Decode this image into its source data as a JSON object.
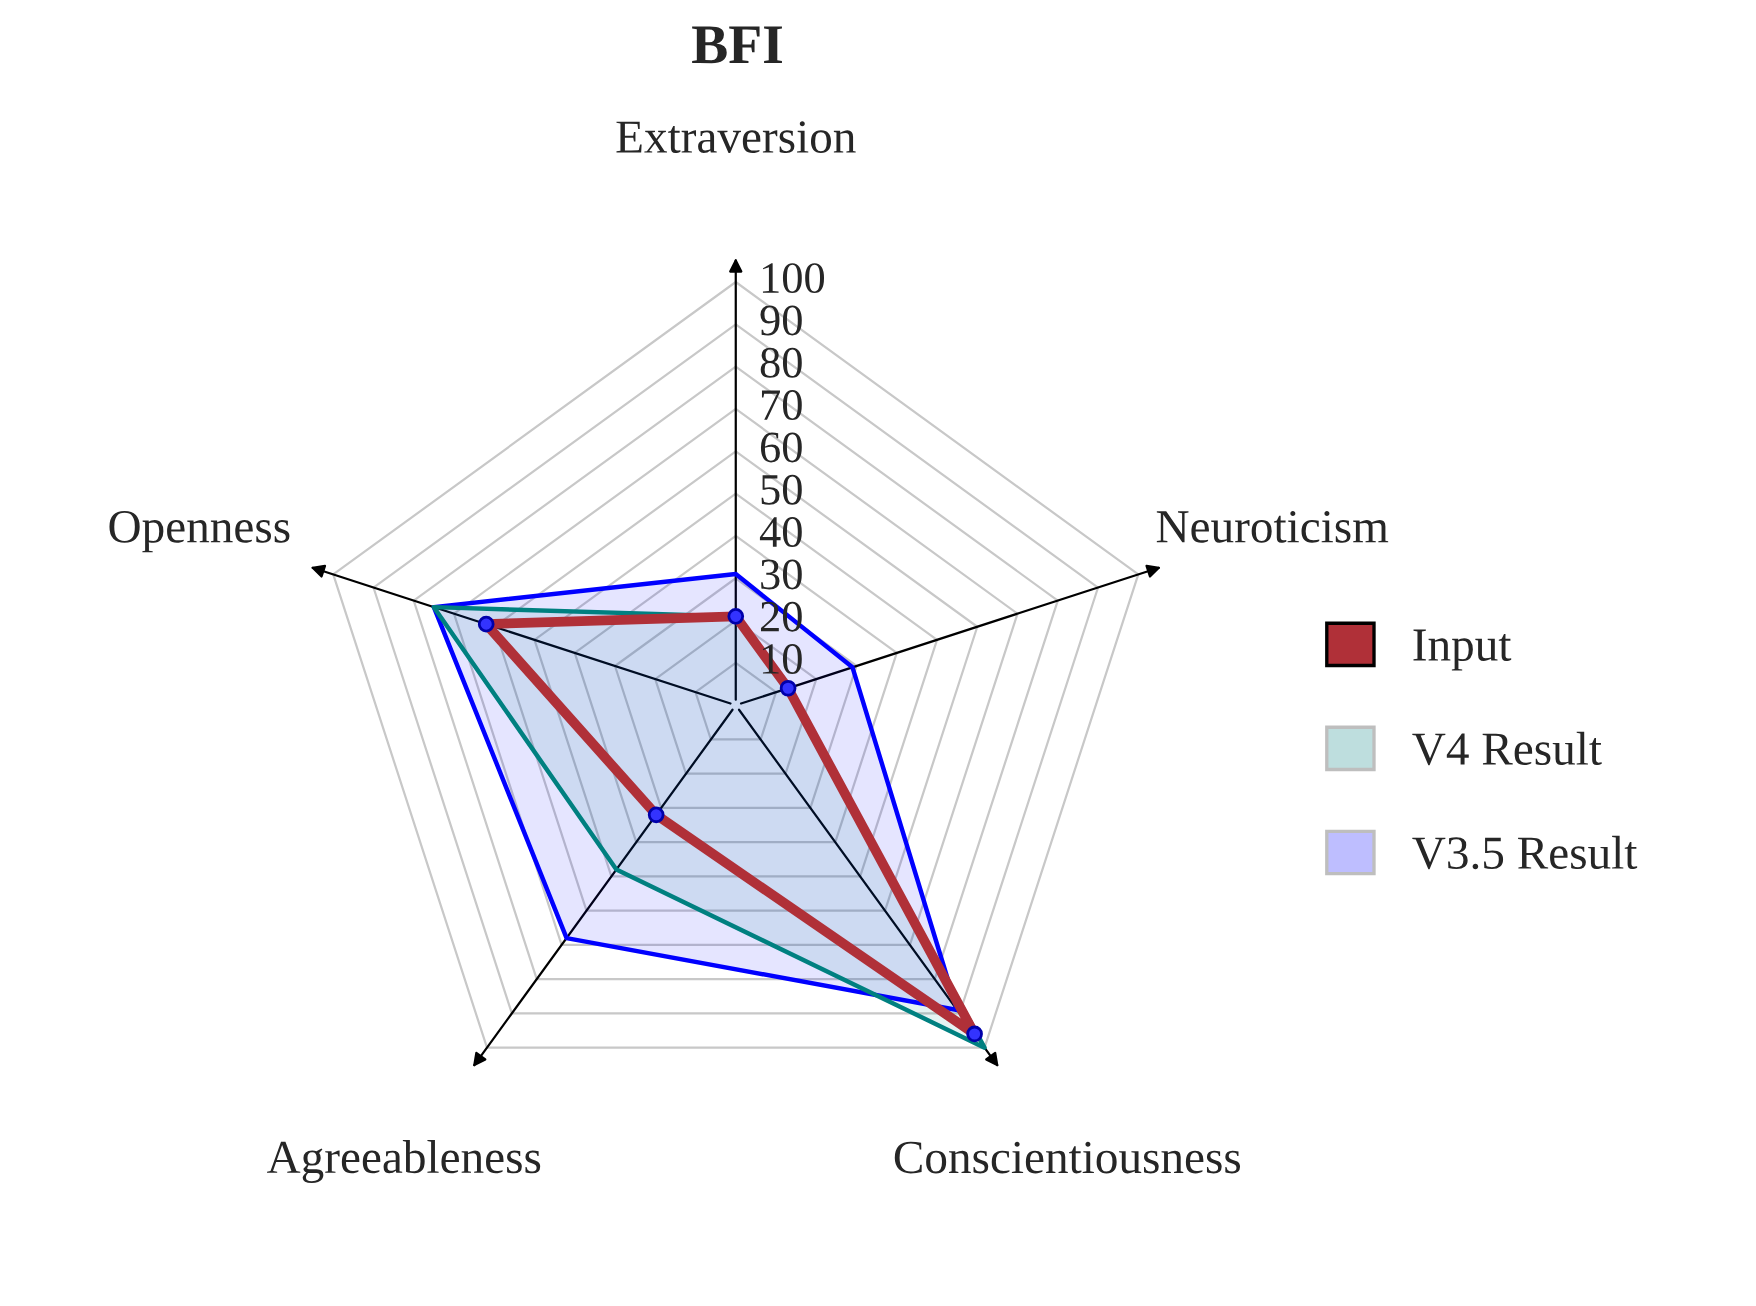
{
  "chart_data": {
    "type": "radar",
    "title": "BFI",
    "categories": [
      "Extraversion",
      "Neuroticism",
      "Conscientiousness",
      "Agreeableness",
      "Openness"
    ],
    "ylim": [
      0,
      100
    ],
    "yticks": [
      10,
      20,
      30,
      40,
      50,
      60,
      70,
      80,
      90,
      100
    ],
    "grid": true,
    "legend": "right",
    "series": [
      {
        "name": "V3.5 Result",
        "color": "#0000ff",
        "values": [
          31,
          29,
          89,
          68,
          75
        ],
        "marker": "none"
      },
      {
        "name": "V4 Result",
        "color": "#008080",
        "values": [
          21,
          13,
          100,
          48,
          75
        ],
        "marker": "none"
      },
      {
        "name": "Input",
        "color": "#b03038",
        "values": [
          21,
          13,
          96,
          32,
          62
        ],
        "marker": "circle"
      }
    ]
  }
}
